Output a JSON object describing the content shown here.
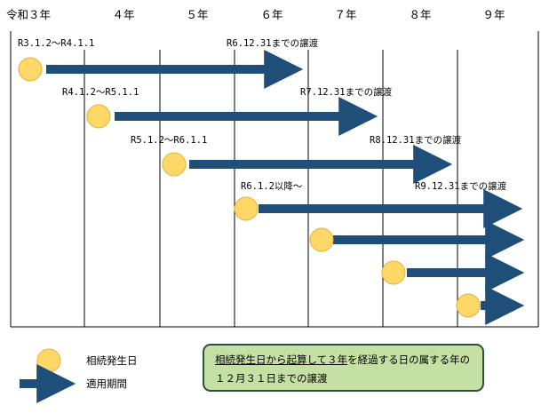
{
  "years": [
    "令和３年",
    "４年",
    "５年",
    "６年",
    "７年",
    "８年",
    "９年"
  ],
  "rows": [
    {
      "period": "R3.1.2～R4.1.1",
      "deadline": "R6.12.31までの譲渡"
    },
    {
      "period": "R4.1.2～R5.1.1",
      "deadline": "R7.12.31までの譲渡"
    },
    {
      "period": "R5.1.2～R6.1.1",
      "deadline": "R8.12.31までの譲渡"
    },
    {
      "period": "R6.1.2以降～",
      "deadline": "R9.12.31までの譲渡"
    },
    {
      "period": "",
      "deadline": ""
    },
    {
      "period": "",
      "deadline": ""
    },
    {
      "period": "",
      "deadline": ""
    }
  ],
  "legend": {
    "dot_label": "相続発生日",
    "arrow_label": "適用期間"
  },
  "note": {
    "underlined": "相続発生日から起算して３年",
    "rest": "を経過する日の属する年の１２月３１日までの譲渡"
  },
  "colors": {
    "arrow": "#1f4e79",
    "dot_fill": "#fdd867",
    "dot_stroke": "#e0b040",
    "note_bg": "#c5e0a5"
  }
}
